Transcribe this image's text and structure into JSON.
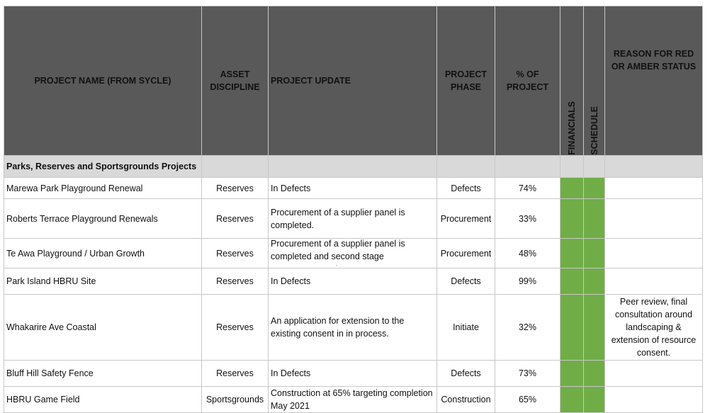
{
  "table": {
    "headers": {
      "project_name": "PROJECT NAME (FROM SYCLE)",
      "asset_discipline": "ASSET DISCIPLINE",
      "project_update": "PROJECT UPDATE",
      "project_phase": "PROJECT PHASE",
      "percent_of_project": "% OF PROJECT",
      "financials": "FINANCIALS",
      "schedule": "SCHEDULE",
      "reason": "REASON FOR RED OR AMBER STATUS"
    },
    "section_title": "Parks, Reserves and Sportsgrounds Projects",
    "status_color": "#70ad47",
    "rows": [
      {
        "name": "Marewa Park Playground Renewal",
        "discipline": "Reserves",
        "update": "In Defects",
        "phase": "Defects",
        "percent": "74%",
        "financials": "green",
        "schedule": "green",
        "reason": ""
      },
      {
        "name": "Roberts Terrace Playground Renewals",
        "discipline": "Reserves",
        "update": "Procurement of a supplier panel is completed.",
        "phase": "Procurement",
        "percent": "33%",
        "financials": "green",
        "schedule": "green",
        "reason": ""
      },
      {
        "name": "Te Awa Playground / Urban Growth",
        "discipline": "Reserves",
        "update": "Procurement of a supplier panel is completed and second stage procurement underway.",
        "phase": "Procurement",
        "percent": "48%",
        "financials": "green",
        "schedule": "green",
        "reason": ""
      },
      {
        "name": "Park Island HBRU Site",
        "discipline": "Reserves",
        "update": "In Defects",
        "phase": "Defects",
        "percent": "99%",
        "financials": "green",
        "schedule": "green",
        "reason": ""
      },
      {
        "name": "Whakarire Ave Coastal",
        "discipline": "Reserves",
        "update": "An application for extension to the existing consent in in process.",
        "phase": "Initiate",
        "percent": "32%",
        "financials": "green",
        "schedule": "green",
        "reason": "Peer review, final consultation around landscaping & extension of resource consent."
      },
      {
        "name": "Bluff Hill Safety Fence",
        "discipline": "Reserves",
        "update": "In Defects",
        "phase": "Defects",
        "percent": "73%",
        "financials": "green",
        "schedule": "green",
        "reason": ""
      },
      {
        "name": "HBRU Game Field",
        "discipline": "Sportsgrounds",
        "update": "Construction at 65% targeting completion May 2021",
        "phase": "Construction",
        "percent": "65%",
        "financials": "green",
        "schedule": "green",
        "reason": ""
      }
    ]
  }
}
